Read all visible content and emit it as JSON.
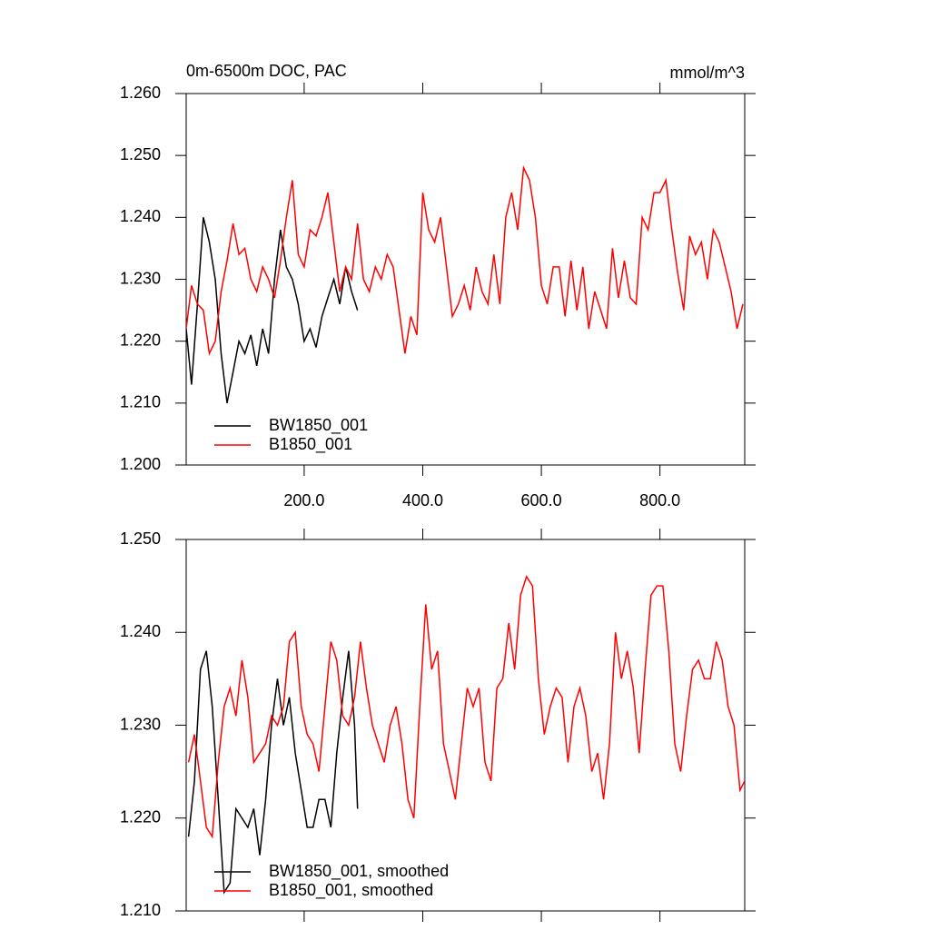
{
  "chart_data": [
    {
      "type": "line",
      "title": "0m-6500m DOC, PAC",
      "units": "mmol/m^3",
      "xlim": [
        1,
        943
      ],
      "ylim": [
        1.2,
        1.26
      ],
      "xticks": [
        {
          "value": 200,
          "label": "200.0"
        },
        {
          "value": 400,
          "label": "400.0"
        },
        {
          "value": 600,
          "label": "600.0"
        },
        {
          "value": 800,
          "label": "800.0"
        }
      ],
      "yticks": [
        {
          "value": 1.2,
          "label": "1.200"
        },
        {
          "value": 1.21,
          "label": "1.210"
        },
        {
          "value": 1.22,
          "label": "1.220"
        },
        {
          "value": 1.23,
          "label": "1.230"
        },
        {
          "value": 1.24,
          "label": "1.240"
        },
        {
          "value": 1.25,
          "label": "1.250"
        },
        {
          "value": 1.26,
          "label": "1.260"
        }
      ],
      "legend": "lower left",
      "series": [
        {
          "name": "BW1850_001",
          "color": "#000000",
          "x": [
            1,
            10,
            20,
            30,
            40,
            50,
            60,
            70,
            80,
            90,
            100,
            110,
            120,
            130,
            140,
            150,
            160,
            170,
            180,
            190,
            200,
            210,
            220,
            230,
            240,
            250,
            260,
            270,
            280,
            290
          ],
          "values": [
            1.222,
            1.213,
            1.226,
            1.24,
            1.236,
            1.23,
            1.218,
            1.21,
            1.215,
            1.22,
            1.218,
            1.221,
            1.216,
            1.222,
            1.218,
            1.23,
            1.238,
            1.232,
            1.23,
            1.226,
            1.22,
            1.222,
            1.219,
            1.224,
            1.227,
            1.23,
            1.226,
            1.232,
            1.228,
            1.225
          ]
        },
        {
          "name": "B1850_001",
          "color": "#ff0000",
          "x": [
            1,
            10,
            20,
            30,
            40,
            50,
            60,
            70,
            80,
            90,
            100,
            110,
            120,
            130,
            140,
            150,
            160,
            170,
            180,
            190,
            200,
            210,
            220,
            230,
            240,
            250,
            260,
            270,
            280,
            290,
            300,
            310,
            320,
            330,
            340,
            350,
            360,
            370,
            380,
            390,
            400,
            410,
            420,
            430,
            440,
            450,
            460,
            470,
            480,
            490,
            500,
            510,
            520,
            530,
            540,
            550,
            560,
            570,
            580,
            590,
            600,
            610,
            620,
            630,
            640,
            650,
            660,
            670,
            680,
            690,
            700,
            710,
            720,
            730,
            740,
            750,
            760,
            770,
            780,
            790,
            800,
            810,
            820,
            830,
            840,
            850,
            860,
            870,
            880,
            890,
            900,
            910,
            920,
            930,
            940
          ],
          "values": [
            1.222,
            1.229,
            1.226,
            1.225,
            1.218,
            1.22,
            1.228,
            1.233,
            1.239,
            1.234,
            1.235,
            1.23,
            1.228,
            1.232,
            1.23,
            1.227,
            1.233,
            1.24,
            1.246,
            1.234,
            1.232,
            1.238,
            1.237,
            1.24,
            1.244,
            1.236,
            1.228,
            1.232,
            1.23,
            1.239,
            1.23,
            1.228,
            1.232,
            1.23,
            1.234,
            1.232,
            1.225,
            1.218,
            1.224,
            1.221,
            1.244,
            1.238,
            1.236,
            1.24,
            1.232,
            1.224,
            1.226,
            1.229,
            1.225,
            1.232,
            1.228,
            1.226,
            1.234,
            1.226,
            1.24,
            1.244,
            1.238,
            1.248,
            1.246,
            1.24,
            1.229,
            1.226,
            1.232,
            1.232,
            1.224,
            1.233,
            1.225,
            1.232,
            1.222,
            1.228,
            1.225,
            1.222,
            1.235,
            1.227,
            1.233,
            1.227,
            1.226,
            1.24,
            1.238,
            1.244,
            1.244,
            1.246,
            1.238,
            1.231,
            1.225,
            1.237,
            1.234,
            1.236,
            1.23,
            1.238,
            1.236,
            1.232,
            1.228,
            1.222,
            1.226
          ]
        }
      ]
    },
    {
      "type": "line",
      "xlim": [
        1,
        943
      ],
      "ylim": [
        1.21,
        1.25
      ],
      "xticks": [
        200,
        400,
        600,
        800
      ],
      "xtick_labels": false,
      "yticks": [
        {
          "value": 1.21,
          "label": "1.210"
        },
        {
          "value": 1.22,
          "label": "1.220"
        },
        {
          "value": 1.23,
          "label": "1.230"
        },
        {
          "value": 1.24,
          "label": "1.240"
        },
        {
          "value": 1.25,
          "label": "1.250"
        }
      ],
      "legend": "lower left",
      "series": [
        {
          "name": "BW1850_001, smoothed",
          "color": "#000000",
          "x": [
            5,
            15,
            25,
            35,
            45,
            55,
            65,
            75,
            85,
            95,
            105,
            115,
            125,
            135,
            145,
            155,
            165,
            175,
            185,
            195,
            205,
            215,
            225,
            235,
            245,
            255,
            265,
            275,
            285,
            290
          ],
          "values": [
            1.218,
            1.224,
            1.236,
            1.238,
            1.232,
            1.222,
            1.212,
            1.213,
            1.221,
            1.22,
            1.219,
            1.221,
            1.216,
            1.222,
            1.23,
            1.235,
            1.23,
            1.233,
            1.227,
            1.223,
            1.219,
            1.219,
            1.222,
            1.222,
            1.219,
            1.227,
            1.233,
            1.238,
            1.23,
            1.221
          ]
        },
        {
          "name": "B1850_001, smoothed",
          "color": "#ff0000",
          "x": [
            5,
            15,
            25,
            35,
            45,
            55,
            65,
            75,
            85,
            95,
            105,
            115,
            125,
            135,
            145,
            155,
            165,
            175,
            185,
            195,
            205,
            215,
            225,
            235,
            245,
            255,
            265,
            275,
            285,
            295,
            305,
            315,
            325,
            335,
            345,
            355,
            365,
            375,
            385,
            395,
            405,
            415,
            425,
            435,
            445,
            455,
            465,
            475,
            485,
            495,
            505,
            515,
            525,
            535,
            545,
            555,
            565,
            575,
            585,
            595,
            605,
            615,
            625,
            635,
            645,
            655,
            665,
            675,
            685,
            695,
            705,
            715,
            725,
            735,
            745,
            755,
            765,
            775,
            785,
            795,
            805,
            815,
            825,
            835,
            845,
            855,
            865,
            875,
            885,
            895,
            905,
            915,
            925,
            935,
            943
          ],
          "values": [
            1.226,
            1.229,
            1.224,
            1.219,
            1.218,
            1.226,
            1.232,
            1.234,
            1.231,
            1.237,
            1.233,
            1.226,
            1.227,
            1.228,
            1.231,
            1.23,
            1.232,
            1.239,
            1.24,
            1.232,
            1.229,
            1.228,
            1.225,
            1.232,
            1.239,
            1.237,
            1.231,
            1.23,
            1.233,
            1.239,
            1.234,
            1.23,
            1.228,
            1.226,
            1.23,
            1.232,
            1.228,
            1.222,
            1.22,
            1.232,
            1.243,
            1.236,
            1.238,
            1.228,
            1.225,
            1.222,
            1.228,
            1.234,
            1.232,
            1.234,
            1.226,
            1.224,
            1.234,
            1.235,
            1.241,
            1.236,
            1.244,
            1.246,
            1.245,
            1.235,
            1.229,
            1.232,
            1.234,
            1.233,
            1.226,
            1.232,
            1.234,
            1.231,
            1.225,
            1.227,
            1.222,
            1.228,
            1.24,
            1.235,
            1.238,
            1.234,
            1.227,
            1.236,
            1.244,
            1.245,
            1.245,
            1.238,
            1.228,
            1.225,
            1.231,
            1.236,
            1.237,
            1.235,
            1.235,
            1.239,
            1.237,
            1.232,
            1.23,
            1.223,
            1.224
          ]
        }
      ]
    }
  ]
}
